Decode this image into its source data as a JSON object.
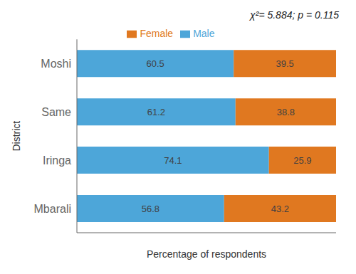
{
  "chart_data": {
    "type": "bar",
    "orientation": "horizontal",
    "stacked": true,
    "categories": [
      "Moshi",
      "Same",
      "Iringa",
      "Mbarali"
    ],
    "series": [
      {
        "name": "Male",
        "color": "#4DA6D9",
        "values": [
          60.5,
          61.2,
          74.1,
          56.8
        ]
      },
      {
        "name": "Female",
        "color": "#E07820",
        "values": [
          39.5,
          38.8,
          25.9,
          43.2
        ]
      }
    ],
    "xlabel": "Percentage of respondents",
    "ylabel": "District",
    "annotation": "χ²= 5.884;  p = 0.115",
    "xlim": [
      0,
      100
    ],
    "tick_labels": "y",
    "data_labels": true,
    "legend": "top"
  }
}
